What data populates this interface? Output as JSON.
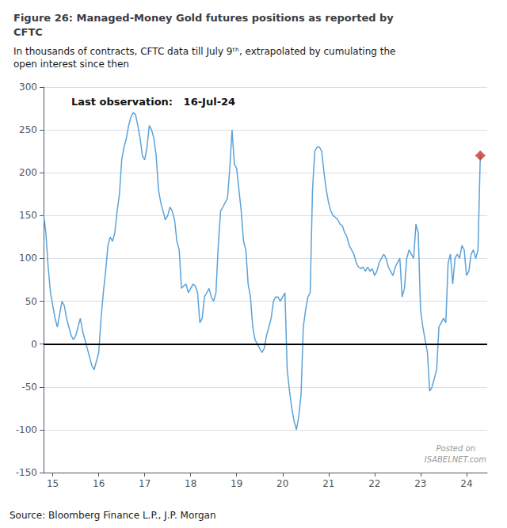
{
  "chart_data": {
    "type": "line",
    "title": "Figure 26: Managed-Money Gold futures positions as reported by\nCFTC",
    "subtitle": "In thousands of contracts, CFTC data till July 9ᵗʰ, extrapolated by cumulating the\nopen interest since then",
    "annotations": [
      "Last observation:   16-Jul-24",
      "Posted on",
      "ISABELNET.com",
      "Source: Bloomberg Finance L.P., J.P. Morgan"
    ],
    "xlim": [
      14.8,
      24.45
    ],
    "xticks": [
      15,
      16,
      17,
      18,
      19,
      20,
      21,
      22,
      23,
      24
    ],
    "ylim": [
      -150,
      300
    ],
    "yticks": [
      -150,
      -100,
      -50,
      0,
      50,
      100,
      150,
      200,
      250,
      300
    ],
    "grid": true,
    "series": [
      {
        "type": "line",
        "color": "#5BA3D9",
        "x": [
          14.8,
          14.85,
          14.9,
          14.95,
          15.0,
          15.05,
          15.1,
          15.15,
          15.2,
          15.25,
          15.3,
          15.35,
          15.4,
          15.45,
          15.5,
          15.55,
          15.6,
          15.65,
          15.7,
          15.75,
          15.8,
          15.85,
          15.9,
          15.95,
          16.0,
          16.05,
          16.1,
          16.15,
          16.2,
          16.25,
          16.3,
          16.35,
          16.4,
          16.45,
          16.5,
          16.55,
          16.6,
          16.65,
          16.7,
          16.75,
          16.8,
          16.85,
          16.9,
          16.95,
          17.0,
          17.05,
          17.1,
          17.15,
          17.2,
          17.25,
          17.3,
          17.35,
          17.4,
          17.45,
          17.5,
          17.55,
          17.6,
          17.65,
          17.7,
          17.75,
          17.8,
          17.85,
          17.9,
          17.95,
          18.0,
          18.05,
          18.1,
          18.15,
          18.2,
          18.25,
          18.3,
          18.35,
          18.4,
          18.45,
          18.5,
          18.55,
          18.6,
          18.65,
          18.7,
          18.75,
          18.8,
          18.85,
          18.9,
          18.95,
          19.0,
          19.05,
          19.1,
          19.15,
          19.2,
          19.25,
          19.3,
          19.35,
          19.4,
          19.45,
          19.5,
          19.55,
          19.6,
          19.65,
          19.7,
          19.75,
          19.8,
          19.85,
          19.9,
          19.95,
          20.0,
          20.05,
          20.1,
          20.15,
          20.2,
          20.25,
          20.3,
          20.35,
          20.4,
          20.45,
          20.5,
          20.55,
          20.6,
          20.65,
          20.7,
          20.75,
          20.8,
          20.85,
          20.9,
          20.95,
          21.0,
          21.05,
          21.1,
          21.15,
          21.2,
          21.25,
          21.3,
          21.35,
          21.4,
          21.45,
          21.5,
          21.55,
          21.6,
          21.65,
          21.7,
          21.75,
          21.8,
          21.85,
          21.9,
          21.95,
          22.0,
          22.05,
          22.1,
          22.15,
          22.2,
          22.25,
          22.3,
          22.35,
          22.4,
          22.45,
          22.5,
          22.55,
          22.6,
          22.65,
          22.7,
          22.75,
          22.8,
          22.85,
          22.9,
          22.95,
          23.0,
          23.05,
          23.1,
          23.15,
          23.2,
          23.25,
          23.3,
          23.35,
          23.4,
          23.45,
          23.5,
          23.55,
          23.6,
          23.65,
          23.7,
          23.75,
          23.8,
          23.85,
          23.9,
          23.95,
          24.0,
          24.05,
          24.1,
          24.15,
          24.2,
          24.25,
          24.3
        ],
        "values": [
          152,
          130,
          90,
          60,
          45,
          30,
          20,
          35,
          50,
          45,
          30,
          20,
          10,
          5,
          10,
          20,
          30,
          15,
          5,
          -5,
          -15,
          -25,
          -30,
          -20,
          -10,
          30,
          60,
          85,
          115,
          125,
          120,
          130,
          155,
          175,
          215,
          230,
          240,
          255,
          265,
          270,
          268,
          255,
          240,
          220,
          215,
          230,
          255,
          250,
          240,
          220,
          180,
          165,
          155,
          145,
          150,
          160,
          155,
          145,
          120,
          110,
          65,
          68,
          70,
          60,
          65,
          70,
          68,
          60,
          25,
          30,
          55,
          60,
          65,
          55,
          50,
          60,
          115,
          155,
          160,
          165,
          170,
          205,
          250,
          210,
          205,
          180,
          155,
          120,
          110,
          70,
          55,
          20,
          5,
          0,
          -5,
          -10,
          -5,
          10,
          20,
          30,
          50,
          55,
          55,
          50,
          55,
          60,
          -30,
          -55,
          -75,
          -90,
          -100,
          -85,
          -60,
          20,
          40,
          55,
          60,
          180,
          225,
          230,
          230,
          225,
          200,
          180,
          165,
          155,
          150,
          148,
          145,
          140,
          138,
          130,
          125,
          115,
          110,
          105,
          95,
          90,
          88,
          90,
          85,
          90,
          85,
          88,
          80,
          85,
          95,
          100,
          105,
          100,
          90,
          85,
          80,
          90,
          95,
          100,
          55,
          65,
          100,
          110,
          105,
          100,
          140,
          130,
          40,
          20,
          5,
          -10,
          -55,
          -50,
          -40,
          -30,
          20,
          25,
          30,
          25,
          95,
          105,
          70,
          100,
          105,
          100,
          115,
          110,
          80,
          85,
          105,
          110,
          100,
          110,
          220
        ]
      },
      {
        "type": "scatter",
        "color": "#C0392B",
        "marker": "diamond",
        "x": [
          24.3
        ],
        "values": [
          220
        ]
      }
    ]
  }
}
